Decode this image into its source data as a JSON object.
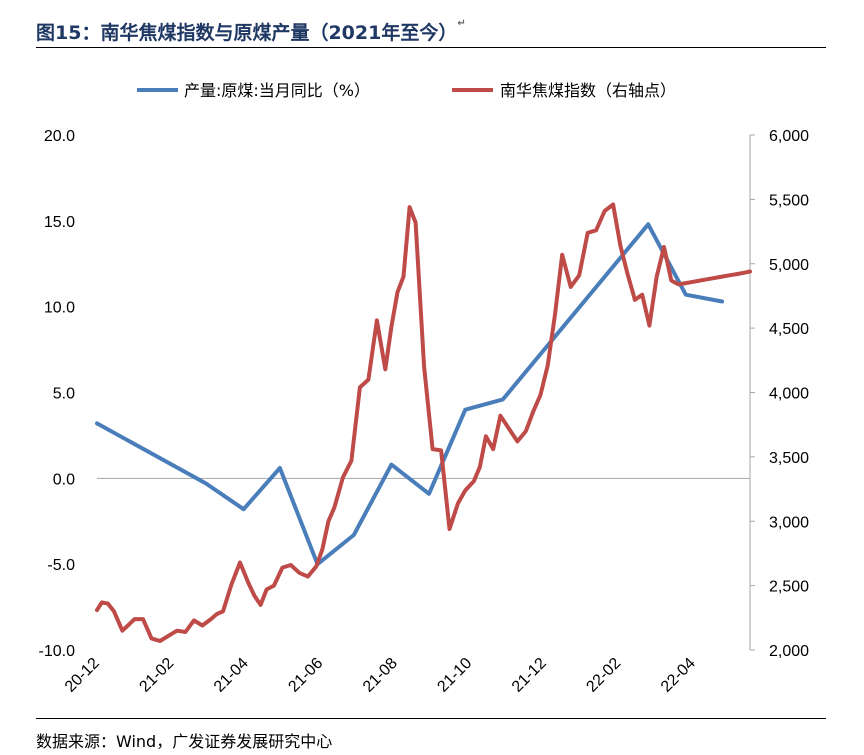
{
  "header": {
    "title": "图15：南华焦煤指数与原煤产量（2021年至今）",
    "para_mark": "↵"
  },
  "footer": {
    "source": "数据来源：Wind，广发证券发展研究中心"
  },
  "colors": {
    "title": "#1f3864",
    "series_left": "#4a7ebb",
    "series_right": "#be4b48",
    "axis": "#a6a6a6"
  },
  "chart_data": {
    "type": "line",
    "title": "",
    "x_tick_labels": [
      "20-12",
      "21-02",
      "21-04",
      "21-06",
      "21-08",
      "21-10",
      "21-12",
      "22-02",
      "22-04"
    ],
    "x_range": [
      "2020-12-01",
      "2022-05-24"
    ],
    "y_left": {
      "ticks": [
        "20.0",
        "15.0",
        "10.0",
        "5.0",
        "0.0",
        "-5.0",
        "-10.0"
      ],
      "ylim": [
        -10,
        20
      ]
    },
    "y_right": {
      "ticks": [
        "6,000",
        "5,500",
        "5,000",
        "4,500",
        "4,000",
        "3,500",
        "3,000",
        "2,500",
        "2,000"
      ],
      "ylim": [
        2000,
        6000
      ]
    },
    "legend_position": "top",
    "series": [
      {
        "name": "产量:原煤:当月同比（%）",
        "axis": "left",
        "color": "#4a7ebb",
        "x": [
          "2020-12-01",
          "2021-03-01",
          "2021-04-01",
          "2021-05-01",
          "2021-06-01",
          "2021-07-01",
          "2021-08-01",
          "2021-09-01",
          "2021-10-01",
          "2021-11-01",
          "2022-03-01",
          "2022-04-01",
          "2022-05-01"
        ],
        "values": [
          3.2,
          -0.3,
          -1.8,
          0.6,
          -5.0,
          -3.3,
          0.8,
          -0.9,
          4.0,
          4.6,
          14.8,
          10.7,
          10.3
        ]
      },
      {
        "name": "南华焦煤指数（右轴点）",
        "axis": "right",
        "color": "#be4b48",
        "x": [
          "2020-12-01",
          "2020-12-05",
          "2020-12-10",
          "2020-12-15",
          "2020-12-22",
          "2021-01-01",
          "2021-01-08",
          "2021-01-15",
          "2021-01-22",
          "2021-01-29",
          "2021-02-05",
          "2021-02-12",
          "2021-02-19",
          "2021-02-26",
          "2021-03-05",
          "2021-03-10",
          "2021-03-15",
          "2021-03-22",
          "2021-03-29",
          "2021-04-05",
          "2021-04-10",
          "2021-04-15",
          "2021-04-20",
          "2021-04-26",
          "2021-05-03",
          "2021-05-10",
          "2021-05-17",
          "2021-05-24",
          "2021-05-31",
          "2021-06-05",
          "2021-06-10",
          "2021-06-15",
          "2021-06-22",
          "2021-06-29",
          "2021-07-06",
          "2021-07-13",
          "2021-07-20",
          "2021-07-27",
          "2021-08-01",
          "2021-08-06",
          "2021-08-11",
          "2021-08-16",
          "2021-08-21",
          "2021-08-28",
          "2021-09-04",
          "2021-09-11",
          "2021-09-18",
          "2021-09-25",
          "2021-10-01",
          "2021-10-08",
          "2021-10-13",
          "2021-10-18",
          "2021-10-24",
          "2021-10-30",
          "2021-11-06",
          "2021-11-13",
          "2021-11-20",
          "2021-11-26",
          "2021-12-02",
          "2021-12-08",
          "2021-12-14",
          "2021-12-20",
          "2021-12-27",
          "2022-01-03",
          "2022-01-10",
          "2022-01-17",
          "2022-01-24",
          "2022-01-31",
          "2022-02-06",
          "2022-02-12",
          "2022-02-18",
          "2022-02-24",
          "2022-03-02",
          "2022-03-08",
          "2022-03-14",
          "2022-03-20",
          "2022-03-26",
          "2022-04-01",
          "2022-04-07",
          "2022-04-13",
          "2022-04-19",
          "2022-04-25",
          "2022-05-01",
          "2022-05-07",
          "2022-05-13",
          "2022-05-19",
          "2022-05-24"
        ],
        "values": [
          2310,
          2370,
          2360,
          2300,
          2150,
          2240,
          2240,
          2090,
          2070,
          2110,
          2150,
          2140,
          2230,
          2190,
          2240,
          2280,
          2300,
          2510,
          2680,
          2520,
          2420,
          2350,
          2470,
          2500,
          2640,
          2660,
          2600,
          2570,
          2650,
          2780,
          3000,
          3110,
          3340,
          3470,
          4040,
          4100,
          4560,
          4180,
          4510,
          4780,
          4900,
          5440,
          5320,
          4200,
          3560,
          3550,
          2940,
          3140,
          3240,
          3310,
          3420,
          3660,
          3560,
          3820,
          3720,
          3620,
          3700,
          3850,
          3980,
          4210,
          4600,
          5070,
          4820,
          4910,
          5240,
          5260,
          5410,
          5460,
          5140,
          4920,
          4720,
          4760,
          4520,
          4900,
          5130,
          4870,
          4840,
          4850,
          4860,
          4870,
          4880,
          4890,
          4900,
          4910,
          4920,
          4930,
          4940
        ]
      }
    ]
  }
}
